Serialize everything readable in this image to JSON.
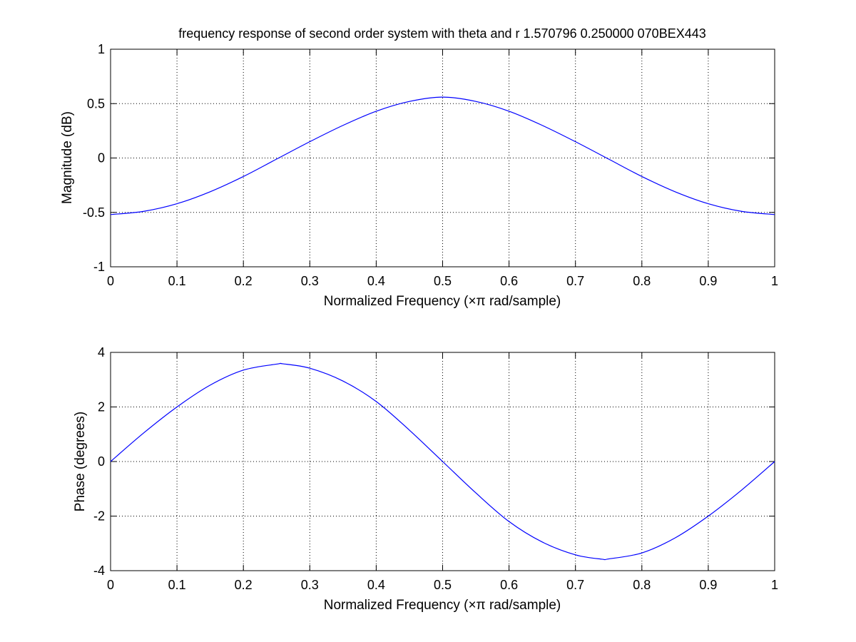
{
  "figure": {
    "background": "#ffffff"
  },
  "chart_data": [
    {
      "type": "line",
      "title": "frequency response of second order system with theta and r 1.570796 0.250000 070BEX443",
      "xlabel": "Normalized Frequency  (×π rad/sample)",
      "ylabel": "Magnitude (dB)",
      "xlim": [
        0,
        1
      ],
      "ylim": [
        -1,
        1
      ],
      "xticks": [
        0,
        0.1,
        0.2,
        0.3,
        0.4,
        0.5,
        0.6,
        0.7,
        0.8,
        0.9,
        1
      ],
      "xtick_labels": [
        "0",
        "0.1",
        "0.2",
        "0.3",
        "0.4",
        "0.5",
        "0.6",
        "0.7",
        "0.8",
        "0.9",
        "1"
      ],
      "yticks": [
        -1,
        -0.5,
        0,
        0.5,
        1
      ],
      "ytick_labels": [
        "-1",
        "-0.5",
        "0",
        "0.5",
        "1"
      ],
      "grid": true,
      "series": [
        {
          "color": "#0000ff",
          "x": [
            0,
            0.05,
            0.1,
            0.15,
            0.2,
            0.25,
            0.3,
            0.35,
            0.4,
            0.45,
            0.5,
            0.55,
            0.6,
            0.65,
            0.7,
            0.75,
            0.8,
            0.85,
            0.9,
            0.95,
            1
          ],
          "y": [
            -0.52,
            -0.49,
            -0.42,
            -0.31,
            -0.17,
            -0.01,
            0.15,
            0.3,
            0.43,
            0.52,
            0.56,
            0.52,
            0.43,
            0.3,
            0.15,
            -0.01,
            -0.17,
            -0.31,
            -0.42,
            -0.49,
            -0.52
          ]
        }
      ]
    },
    {
      "type": "line",
      "title": "",
      "xlabel": "Normalized Frequency  (×π rad/sample)",
      "ylabel": "Phase (degrees)",
      "xlim": [
        0,
        1
      ],
      "ylim": [
        -4,
        4
      ],
      "xticks": [
        0,
        0.1,
        0.2,
        0.3,
        0.4,
        0.5,
        0.6,
        0.7,
        0.8,
        0.9,
        1
      ],
      "xtick_labels": [
        "0",
        "0.1",
        "0.2",
        "0.3",
        "0.4",
        "0.5",
        "0.6",
        "0.7",
        "0.8",
        "0.9",
        "1"
      ],
      "yticks": [
        -4,
        -2,
        0,
        2,
        4
      ],
      "ytick_labels": [
        "-4",
        "-2",
        "0",
        "2",
        "4"
      ],
      "grid": true,
      "series": [
        {
          "color": "#0000ff",
          "x": [
            0,
            0.05,
            0.1,
            0.15,
            0.2,
            0.25,
            0.26,
            0.3,
            0.35,
            0.4,
            0.45,
            0.5,
            0.55,
            0.6,
            0.65,
            0.7,
            0.74,
            0.75,
            0.8,
            0.85,
            0.9,
            0.95,
            1
          ],
          "y": [
            0,
            1.05,
            2.0,
            2.8,
            3.35,
            3.57,
            3.58,
            3.42,
            2.95,
            2.2,
            1.15,
            0,
            -1.15,
            -2.2,
            -2.95,
            -3.42,
            -3.58,
            -3.57,
            -3.35,
            -2.8,
            -2.0,
            -1.05,
            0
          ]
        }
      ]
    }
  ]
}
